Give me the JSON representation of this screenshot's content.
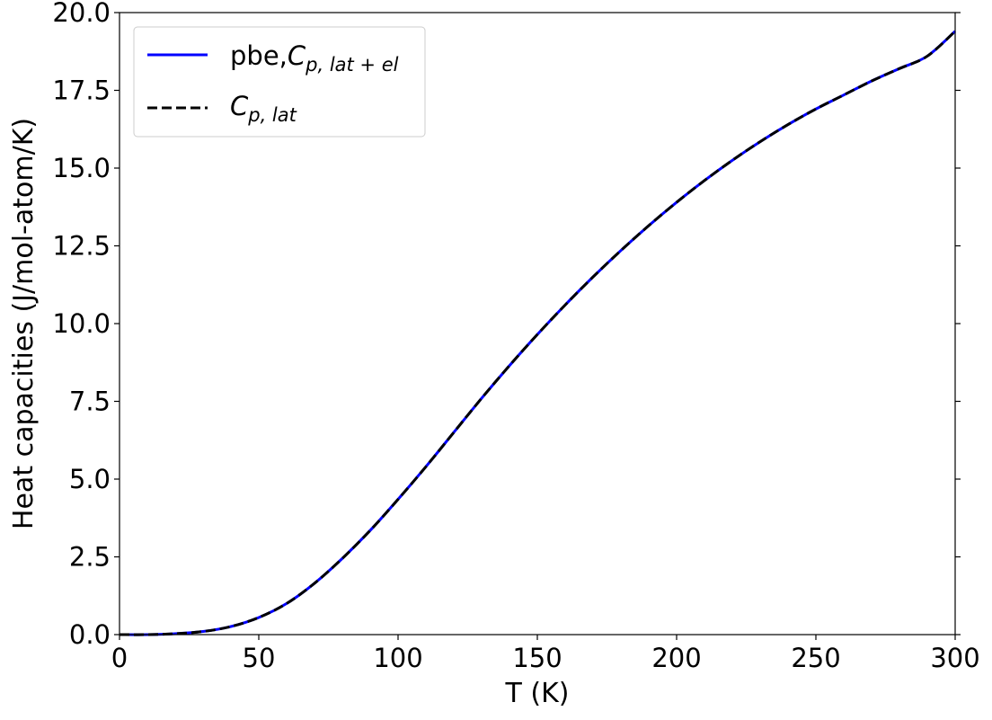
{
  "chart_data": {
    "type": "line",
    "xlabel": "T (K)",
    "ylabel": "Heat capacities (J/mol-atom/K)",
    "xlim": [
      0,
      300
    ],
    "ylim": [
      0,
      20
    ],
    "xticks": [
      "0",
      "50",
      "100",
      "150",
      "200",
      "250",
      "300"
    ],
    "yticks": [
      "0.0",
      "2.5",
      "5.0",
      "7.5",
      "10.0",
      "12.5",
      "15.0",
      "17.5",
      "20.0"
    ],
    "grid": false,
    "legend_position": "top-left",
    "series": [
      {
        "name": "pbe,C_{p,lat+el}",
        "legend": {
          "prefix": "pbe,",
          "var": "C",
          "sub": "p, lat + el"
        },
        "color": "#0000ff",
        "style": "solid",
        "x": [
          0,
          10,
          20,
          30,
          40,
          50,
          60,
          70,
          80,
          90,
          100,
          110,
          120,
          130,
          140,
          150,
          160,
          170,
          180,
          190,
          200,
          210,
          220,
          230,
          240,
          250,
          260,
          270,
          280,
          290,
          300
        ],
        "y": [
          0.0,
          0.0,
          0.03,
          0.1,
          0.26,
          0.55,
          1.0,
          1.65,
          2.45,
          3.35,
          4.35,
          5.4,
          6.5,
          7.6,
          8.65,
          9.65,
          10.6,
          11.5,
          12.35,
          13.15,
          13.9,
          14.6,
          15.25,
          15.85,
          16.4,
          16.9,
          17.35,
          17.8,
          18.2,
          18.6,
          19.4
        ]
      },
      {
        "name": "C_{p,lat}",
        "legend": {
          "prefix": "",
          "var": "C",
          "sub": "p, lat"
        },
        "color": "#000000",
        "style": "dashed",
        "x": [
          0,
          10,
          20,
          30,
          40,
          50,
          60,
          70,
          80,
          90,
          100,
          110,
          120,
          130,
          140,
          150,
          160,
          170,
          180,
          190,
          200,
          210,
          220,
          230,
          240,
          250,
          260,
          270,
          280,
          290,
          300
        ],
        "y": [
          0.0,
          0.0,
          0.03,
          0.1,
          0.26,
          0.55,
          1.0,
          1.65,
          2.45,
          3.35,
          4.35,
          5.4,
          6.5,
          7.6,
          8.65,
          9.65,
          10.6,
          11.5,
          12.35,
          13.15,
          13.9,
          14.6,
          15.25,
          15.85,
          16.4,
          16.9,
          17.35,
          17.8,
          18.2,
          18.6,
          19.4
        ]
      }
    ]
  }
}
